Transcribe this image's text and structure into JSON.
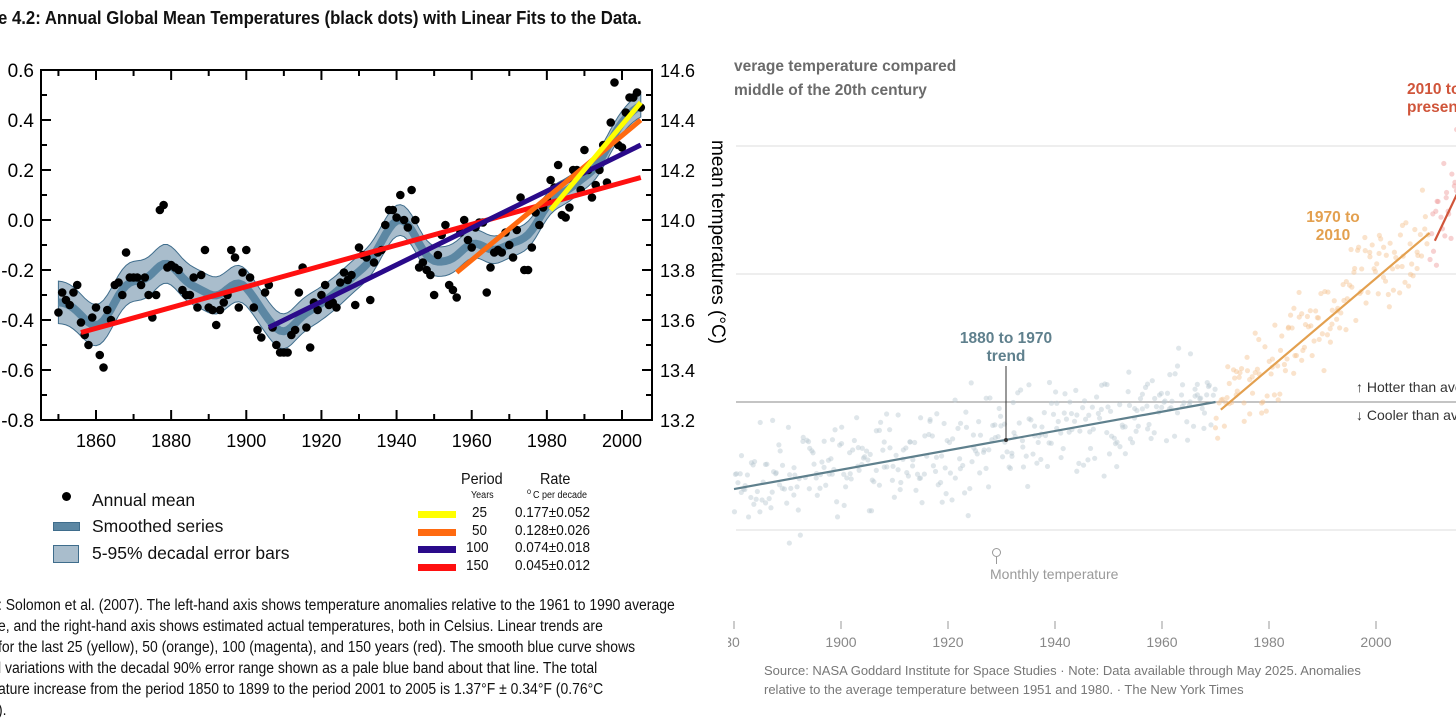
{
  "chart_data": [
    {
      "type": "scatter",
      "title": "e 4.2: Annual Global Mean Temperatures (black dots) with Linear Fits to the Data.",
      "xlabel": "",
      "ylabel_left": "",
      "ylabel_right": "mean temperatures (°C)",
      "xlim": [
        1845,
        2008
      ],
      "ylim": [
        -0.8,
        0.6
      ],
      "ylim_right": [
        13.2,
        14.6
      ],
      "x_ticks": [
        "1860",
        "1880",
        "1900",
        "1920",
        "1940",
        "1960",
        "1980",
        "2000"
      ],
      "y_ticks_left": [
        "0.6",
        "0.4",
        "0.2",
        "0.0",
        "-0.2",
        "-0.4",
        "-0.6",
        "-0.8"
      ],
      "y_ticks_right": [
        "14.6",
        "14.4",
        "14.2",
        "14.0",
        "13.8",
        "13.6",
        "13.4",
        "13.2"
      ],
      "annual_mean": {
        "start_year": 1850,
        "values": [
          -0.37,
          -0.29,
          -0.32,
          -0.34,
          -0.29,
          -0.26,
          -0.41,
          -0.46,
          -0.5,
          -0.39,
          -0.35,
          -0.54,
          -0.59,
          -0.36,
          -0.4,
          -0.26,
          -0.25,
          -0.3,
          -0.13,
          -0.23,
          -0.23,
          -0.23,
          -0.26,
          -0.23,
          -0.3,
          -0.39,
          -0.3,
          0.04,
          0.06,
          -0.19,
          -0.18,
          -0.19,
          -0.2,
          -0.28,
          -0.3,
          -0.3,
          -0.23,
          -0.35,
          -0.22,
          -0.12,
          -0.35,
          -0.36,
          -0.42,
          -0.36,
          -0.33,
          -0.3,
          -0.12,
          -0.15,
          -0.35,
          -0.21,
          -0.12,
          -0.23,
          -0.35,
          -0.44,
          -0.47,
          -0.29,
          -0.26,
          -0.43,
          -0.5,
          -0.53,
          -0.53,
          -0.53,
          -0.46,
          -0.44,
          -0.29,
          -0.19,
          -0.43,
          -0.51,
          -0.33,
          -0.36,
          -0.3,
          -0.26,
          -0.34,
          -0.33,
          -0.35,
          -0.25,
          -0.21,
          -0.24,
          -0.22,
          -0.34,
          -0.11,
          -0.14,
          -0.15,
          -0.32,
          -0.17,
          -0.13,
          -0.12,
          -0.02,
          0.04,
          0.04,
          0.01,
          0.1,
          0.0,
          -0.03,
          0.12,
          0.0,
          -0.19,
          -0.17,
          -0.2,
          -0.22,
          -0.3,
          -0.14,
          -0.06,
          -0.02,
          -0.26,
          -0.28,
          -0.31,
          -0.05,
          0.0,
          -0.08,
          -0.11,
          -0.03,
          -0.01,
          -0.01,
          -0.29,
          -0.19,
          -0.13,
          -0.12,
          -0.13,
          -0.05,
          -0.1,
          -0.15,
          -0.04,
          0.09,
          -0.2,
          -0.2,
          -0.11,
          0.03,
          -0.02,
          0.05,
          0.08,
          0.16,
          0.13,
          0.22,
          0.02,
          0.01,
          0.05,
          0.2,
          0.2,
          0.12,
          0.28,
          0.2,
          0.09,
          0.14,
          0.2,
          0.3,
          0.15,
          0.39,
          0.55,
          0.3,
          0.29,
          0.43,
          0.49,
          0.49,
          0.51,
          0.45
        ]
      },
      "fits": [
        {
          "period": "25",
          "rate": "0.177±0.052",
          "color": "#ffff00",
          "x": [
            1981,
            2005
          ],
          "y": [
            0.04,
            0.47
          ]
        },
        {
          "period": "50",
          "rate": "0.128±0.026",
          "color": "#ff6a10",
          "x": [
            1956,
            2005
          ],
          "y": [
            -0.21,
            0.4
          ]
        },
        {
          "period": "100",
          "rate": "0.074±0.018",
          "color": "#2a0a8a",
          "x": [
            1906,
            2005
          ],
          "y": [
            -0.43,
            0.3
          ]
        },
        {
          "period": "150",
          "rate": "0.045±0.012",
          "color": "#ff1010",
          "x": [
            1856,
            2005
          ],
          "y": [
            -0.45,
            0.17
          ]
        }
      ],
      "legend": {
        "annual_mean": "Annual mean",
        "smoothed": "Smoothed series",
        "error_bars": "5-95% decadal error bars",
        "period_header": "Period",
        "rate_header": "Rate",
        "period_unit": "Years",
        "rate_unit_sup": "o",
        "rate_unit": "C  per decade"
      },
      "colors": {
        "band": "#a9bdcc",
        "band_edge": "#3f6d8c",
        "smoothed": "#5c87a3"
      }
    },
    {
      "type": "scatter",
      "title_lines": [
        "verage temperature compared",
        "middle of the 20th century"
      ],
      "xlim": [
        1879,
        2016
      ],
      "ylim": [
        -0.75,
        1.1
      ],
      "gridlines": [
        1.0,
        0.5,
        0.0,
        -0.5
      ],
      "x_ticks": [
        "30",
        "1900",
        "1920",
        "1940",
        "1960",
        "1980",
        "2000"
      ],
      "trends": [
        {
          "label": [
            "1880 to 1970",
            "trend"
          ],
          "x": [
            1880,
            1970
          ],
          "y": [
            -0.34,
            0.0
          ],
          "color": "#5f808d"
        },
        {
          "label": [
            "1970 to",
            "2010"
          ],
          "x": [
            1971,
            2010
          ],
          "y": [
            -0.03,
            0.66
          ],
          "color": "#e3a04f"
        },
        {
          "label": [
            "2010 to",
            "present"
          ],
          "x": [
            2011,
            2016
          ],
          "y": [
            0.63,
            0.85
          ],
          "color": "#d0553a"
        }
      ],
      "dot_colors": {
        "early": "#b9c8d0",
        "mid": "#f3c08f",
        "late": "#ee9a9a"
      },
      "annotations": {
        "monthly": "Monthly temperature",
        "hotter": "Hotter than average",
        "cooler": "Cooler than average"
      },
      "footer": [
        "Source: NASA Goddard Institute for Space Studies  ·  Note: Data available through May 2025. Anomalies",
        "relative to the average temperature between 1951 and 1980.  ·  The New York Times"
      ]
    }
  ],
  "caption": [
    ": Solomon et al. (2007).  The left-hand axis shows temperature anomalies relative to the 1961 to 1990 average",
    "e, and the right-hand axis shows estimated actual temperatures, both in Celsius. Linear trends are",
    " for the last 25 (yellow), 50 (orange), 100 (magenta), and 150 years (red). The smooth blue curve shows",
    "l variations with the decadal 90% error range shown as a pale blue band about that line. The total",
    "ature increase from the period 1850 to 1899 to the period 2001 to 2005 is 1.37°F ± 0.34°F (0.76°C",
    ")."
  ]
}
